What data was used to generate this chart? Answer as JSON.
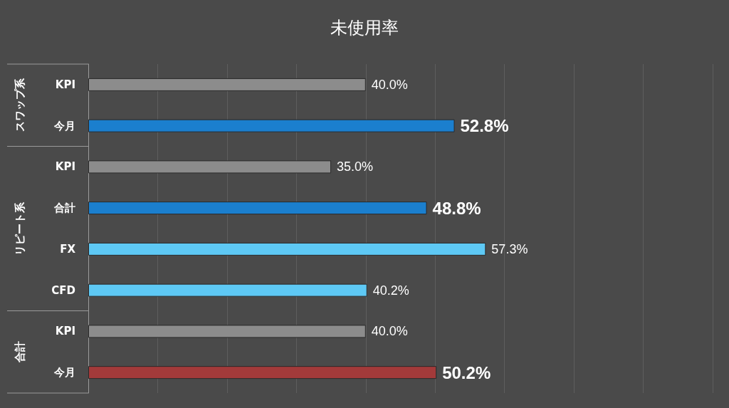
{
  "chart_data": {
    "type": "bar",
    "orientation": "horizontal",
    "title": "未使用率",
    "categories": [
      "KPI",
      "今月",
      "KPI",
      "合計",
      "FX",
      "CFD",
      "KPI",
      "今月"
    ],
    "values": [
      40.0,
      52.8,
      35.0,
      48.8,
      57.3,
      40.2,
      40.0,
      50.2
    ],
    "colors": [
      "#8c8c8c",
      "#1b7fce",
      "#8c8c8c",
      "#1b7fce",
      "#5ec9f5",
      "#5ec9f5",
      "#8c8c8c",
      "#a33a3a"
    ],
    "value_labels": [
      "40.0%",
      "52.8%",
      "35.0%",
      "48.8%",
      "57.3%",
      "40.2%",
      "40.0%",
      "50.2%"
    ],
    "annotations": [
      "スワップ系",
      "リピート系",
      "合計"
    ],
    "xlim": [
      0,
      90
    ],
    "xticks": [
      {
        "value": 0,
        "label": null
      },
      {
        "value": 10,
        "label": null
      },
      {
        "value": 20,
        "label": null
      },
      {
        "value": 30,
        "label": null
      },
      {
        "value": 40,
        "label": null
      },
      {
        "value": 50,
        "label": null
      },
      {
        "value": 60,
        "label": null
      },
      {
        "value": 70,
        "label": null
      },
      {
        "value": 80,
        "label": null
      },
      {
        "value": 90,
        "label": null
      }
    ],
    "grid": "x",
    "tick_labels": "y"
  }
}
